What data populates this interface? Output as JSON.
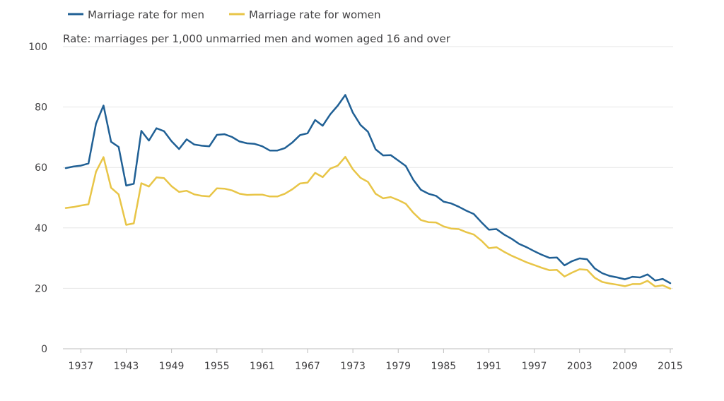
{
  "chart_data": {
    "type": "line",
    "title": "",
    "subtitle": "Rate: marriages per 1,000 unmarried men and women aged 16 and over",
    "xlabel": "",
    "ylabel": "",
    "ylim": [
      0,
      100
    ],
    "yticks": [
      0,
      20,
      40,
      60,
      80,
      100
    ],
    "xlim": [
      1935,
      2015
    ],
    "xticks": [
      1937,
      1943,
      1949,
      1955,
      1961,
      1967,
      1973,
      1979,
      1985,
      1991,
      1997,
      2003,
      2009,
      2015
    ],
    "grid": true,
    "legend_position": "top-left",
    "x": [
      1935,
      1936,
      1937,
      1938,
      1939,
      1940,
      1941,
      1942,
      1943,
      1944,
      1945,
      1946,
      1947,
      1948,
      1949,
      1950,
      1951,
      1952,
      1953,
      1954,
      1955,
      1956,
      1957,
      1958,
      1959,
      1960,
      1961,
      1962,
      1963,
      1964,
      1965,
      1966,
      1967,
      1968,
      1969,
      1970,
      1971,
      1972,
      1973,
      1974,
      1975,
      1976,
      1977,
      1978,
      1979,
      1980,
      1981,
      1982,
      1983,
      1984,
      1985,
      1986,
      1987,
      1988,
      1989,
      1990,
      1991,
      1992,
      1993,
      1994,
      1995,
      1996,
      1997,
      1998,
      1999,
      2000,
      2001,
      2002,
      2003,
      2004,
      2005,
      2006,
      2007,
      2008,
      2009,
      2010,
      2011,
      2012,
      2013,
      2014,
      2015
    ],
    "series": [
      {
        "name": "Marriage rate for men",
        "color": "#206095",
        "values": [
          59.8,
          60.3,
          60.6,
          61.3,
          74.5,
          80.5,
          68.5,
          66.8,
          54.0,
          54.6,
          72.1,
          68.9,
          73.0,
          72.0,
          68.7,
          66.1,
          69.3,
          67.6,
          67.2,
          67.0,
          70.8,
          71.0,
          70.1,
          68.6,
          68.0,
          67.8,
          67.0,
          65.6,
          65.6,
          66.4,
          68.3,
          70.7,
          71.3,
          75.7,
          73.8,
          77.6,
          80.5,
          84.0,
          78.1,
          74.1,
          71.8,
          66.0,
          64.0,
          64.1,
          62.3,
          60.5,
          55.9,
          52.6,
          51.3,
          50.6,
          48.7,
          48.1,
          47.0,
          45.7,
          44.6,
          41.9,
          39.4,
          39.6,
          37.8,
          36.4,
          34.7,
          33.6,
          32.3,
          31.1,
          30.1,
          30.2,
          27.6,
          29.0,
          29.9,
          29.6,
          26.6,
          25.0,
          24.1,
          23.6,
          23.0,
          23.8,
          23.6,
          24.6,
          22.6,
          23.1,
          21.7
        ]
      },
      {
        "name": "Marriage rate for women",
        "color": "#e8c547",
        "values": [
          46.6,
          46.9,
          47.4,
          47.8,
          58.6,
          63.4,
          53.3,
          51.1,
          41.0,
          41.5,
          54.8,
          53.7,
          56.7,
          56.5,
          53.8,
          51.9,
          52.3,
          51.1,
          50.6,
          50.4,
          53.1,
          53.0,
          52.4,
          51.3,
          50.9,
          51.0,
          51.0,
          50.4,
          50.4,
          51.3,
          52.8,
          54.7,
          55.0,
          58.2,
          56.8,
          59.6,
          60.6,
          63.5,
          59.4,
          56.6,
          55.2,
          51.3,
          49.8,
          50.2,
          49.2,
          48.0,
          45.0,
          42.6,
          41.9,
          41.8,
          40.5,
          39.8,
          39.6,
          38.6,
          37.8,
          35.8,
          33.3,
          33.6,
          32.1,
          30.8,
          29.7,
          28.6,
          27.7,
          26.8,
          26.0,
          26.1,
          23.9,
          25.2,
          26.3,
          26.1,
          23.5,
          22.1,
          21.6,
          21.2,
          20.7,
          21.4,
          21.4,
          22.5,
          20.6,
          21.0,
          19.9
        ]
      }
    ]
  }
}
